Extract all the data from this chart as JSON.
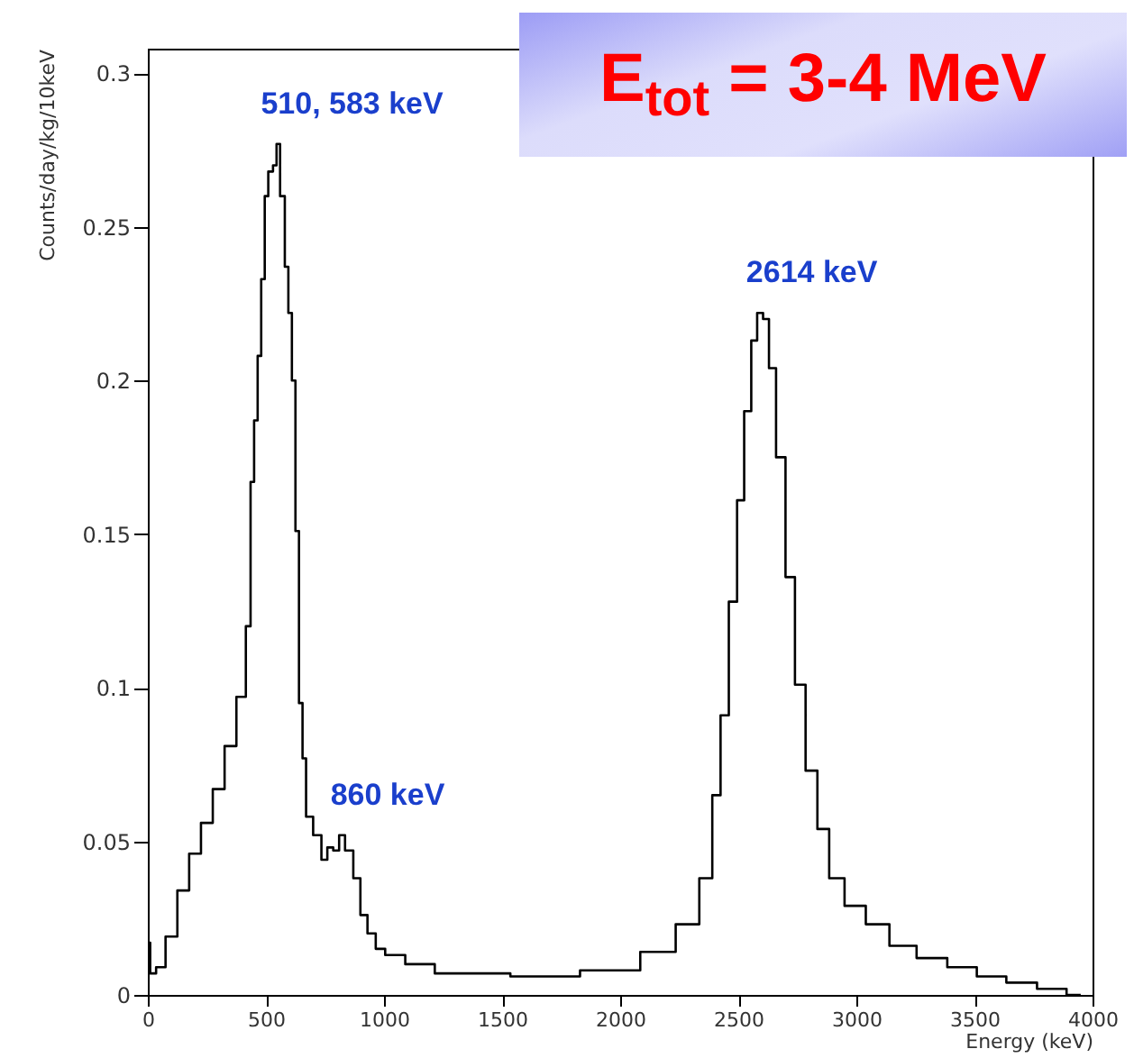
{
  "chart_data": {
    "type": "step",
    "title": "E$_{tot}$ = 3-4 MeV",
    "xlabel": "Energy (keV)",
    "ylabel": "Counts/day/kg/10keV",
    "x": [
      0,
      20,
      50,
      100,
      150,
      200,
      250,
      300,
      350,
      400,
      430,
      440,
      460,
      470,
      490,
      500,
      520,
      540,
      550,
      570,
      590,
      600,
      620,
      630,
      650,
      660,
      680,
      720,
      750,
      770,
      800,
      820,
      850,
      890,
      910,
      950,
      980,
      1030,
      1150,
      1280,
      1410,
      1660,
      2000,
      2170,
      2300,
      2370,
      2410,
      2440,
      2480,
      2510,
      2540,
      2570,
      2590,
      2620,
      2640,
      2680,
      2720,
      2760,
      2810,
      2860,
      2910,
      2990,
      3090,
      3190,
      3320,
      3450,
      3570,
      3700,
      3830,
      3950
    ],
    "series": [
      {
        "color": "#000000",
        "values": [
          0.017,
          0.007,
          0.009,
          0.019,
          0.034,
          0.046,
          0.056,
          0.067,
          0.081,
          0.097,
          0.12,
          0.167,
          0.187,
          0.208,
          0.233,
          0.26,
          0.268,
          0.27,
          0.277,
          0.26,
          0.237,
          0.222,
          0.2,
          0.151,
          0.095,
          0.077,
          0.058,
          0.052,
          0.044,
          0.048,
          0.047,
          0.052,
          0.047,
          0.038,
          0.026,
          0.02,
          0.015,
          0.013,
          0.01,
          0.007,
          0.007,
          0.006,
          0.008,
          0.014,
          0.023,
          0.038,
          0.065,
          0.091,
          0.128,
          0.161,
          0.19,
          0.213,
          0.222,
          0.22,
          0.204,
          0.175,
          0.136,
          0.101,
          0.073,
          0.054,
          0.038,
          0.029,
          0.023,
          0.016,
          0.012,
          0.009,
          0.006,
          0.004,
          0.002,
          0
        ]
      }
    ],
    "xlim": [
      0,
      4000
    ],
    "ylim": [
      0,
      0.308
    ],
    "xticks": [
      0,
      500,
      1000,
      1500,
      2000,
      2500,
      3000,
      3500,
      4000
    ],
    "yticks": [
      0,
      0.05,
      0.1,
      0.15,
      0.2,
      0.25,
      0.3
    ],
    "grid": false,
    "annotations": [
      {
        "text": "510, 583 keV",
        "x": 555,
        "y": 0.277
      },
      {
        "text": "860 keV",
        "x": 850,
        "y": 0.052
      },
      {
        "text": "2614 keV",
        "x": 2610,
        "y": 0.222
      }
    ]
  }
}
